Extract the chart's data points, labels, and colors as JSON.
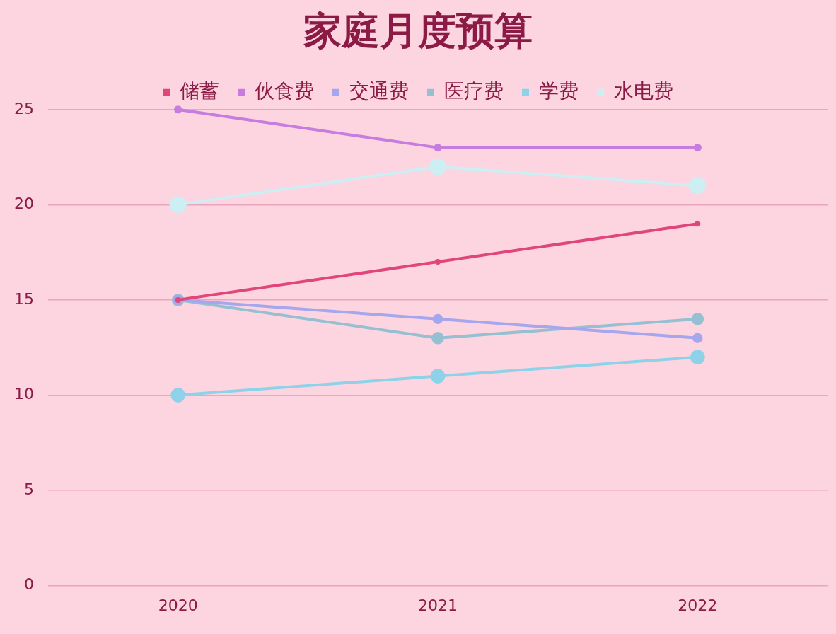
{
  "chart_data": {
    "type": "line",
    "title": "家庭月度预算",
    "categories": [
      "2020",
      "2021",
      "2022"
    ],
    "series": [
      {
        "name": "储蓄",
        "color": "#e0457b",
        "values": [
          15,
          17,
          19
        ]
      },
      {
        "name": "伙食费",
        "color": "#c77de0",
        "values": [
          25,
          23,
          23
        ]
      },
      {
        "name": "交通费",
        "color": "#a6a6ee",
        "values": [
          15,
          14,
          13
        ]
      },
      {
        "name": "医疗费",
        "color": "#96c0d2",
        "values": [
          15,
          13,
          14
        ]
      },
      {
        "name": "学费",
        "color": "#8ed2ea",
        "values": [
          10,
          11,
          12
        ]
      },
      {
        "name": "水电费",
        "color": "#cdeef2",
        "values": [
          20,
          22,
          21
        ]
      }
    ],
    "ylim": [
      0,
      25
    ],
    "yticks": [
      0,
      5,
      10,
      15,
      20,
      25
    ],
    "grid": "y",
    "legend": "top",
    "marker": "circle",
    "line_style": "solid"
  }
}
